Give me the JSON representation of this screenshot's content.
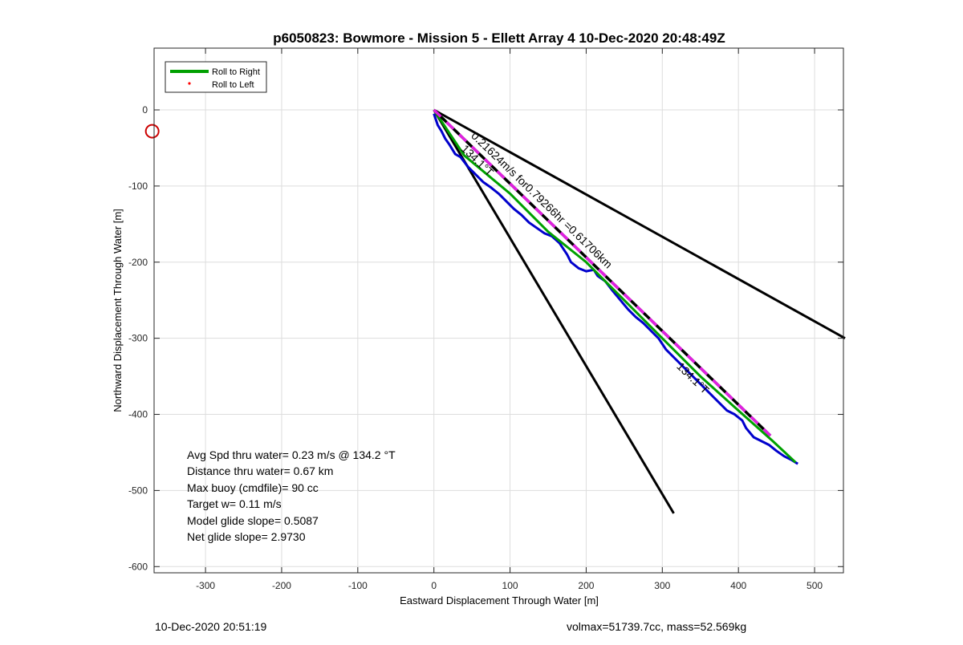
{
  "chart_data": {
    "type": "line",
    "title": "p6050823: Bowmore - Mission 5 - Ellett Array 4 10-Dec-2020 20:48:49Z",
    "xlabel": "Eastward Displacement Through Water [m]",
    "ylabel": "Northward Displacement Through Water [m]",
    "xlim": [
      -375,
      540
    ],
    "ylim": [
      -610,
      80
    ],
    "xticks": [
      -300,
      -200,
      -100,
      0,
      100,
      200,
      300,
      400,
      500
    ],
    "yticks": [
      0,
      -100,
      -200,
      -300,
      -400,
      -500,
      -600
    ],
    "grid": true,
    "legend": {
      "placement": "top-left",
      "entries": [
        "Roll to Right",
        "Roll to Left"
      ]
    },
    "series": [
      {
        "name": "Roll to Right",
        "color": "#00a000",
        "x": [
          0,
          40,
          100,
          150,
          200,
          250,
          300,
          350,
          400,
          445,
          475
        ],
        "y": [
          0,
          -60,
          -110,
          -160,
          -200,
          -250,
          -300,
          -350,
          -395,
          -435,
          -463
        ]
      },
      {
        "name": "Roll to Left",
        "color": "#ff0000",
        "marker": "dot",
        "x": [],
        "y": []
      }
    ],
    "track": {
      "color": "#0000cc",
      "x": [
        0,
        5,
        10,
        15,
        20,
        28,
        35,
        45,
        55,
        65,
        75,
        85,
        95,
        105,
        115,
        125,
        135,
        145,
        155,
        165,
        175,
        180,
        190,
        200,
        210,
        215,
        225,
        235,
        245,
        255,
        265,
        275,
        285,
        295,
        305,
        315,
        325,
        335,
        345,
        355,
        365,
        375,
        385,
        395,
        405,
        410,
        420,
        430,
        440,
        450,
        460,
        470,
        478
      ],
      "y": [
        -5,
        -20,
        -28,
        -38,
        -45,
        -58,
        -62,
        -75,
        -85,
        -95,
        -102,
        -110,
        -120,
        -130,
        -138,
        -148,
        -155,
        -162,
        -166,
        -175,
        -190,
        -200,
        -208,
        -212,
        -210,
        -218,
        -225,
        -238,
        -250,
        -262,
        -272,
        -280,
        -290,
        -300,
        -315,
        -325,
        -335,
        -345,
        -355,
        -365,
        -375,
        -385,
        -395,
        -400,
        -408,
        -418,
        -430,
        -435,
        -440,
        -448,
        -455,
        -460,
        -465
      ]
    },
    "reference_lines": [
      {
        "x": [
          0,
          540
        ],
        "y": [
          0,
          -300
        ],
        "color": "#000000"
      },
      {
        "x": [
          0,
          315
        ],
        "y": [
          0,
          -530
        ],
        "color": "#000000"
      }
    ],
    "dashed_line": {
      "x": [
        0,
        442
      ],
      "y": [
        0,
        -428
      ],
      "colors": [
        "#000000",
        "#e020e0"
      ]
    },
    "circle_marker": {
      "x": -370,
      "y": -28,
      "color": "#cc0000"
    },
    "annotations": [
      {
        "text": "0.21624m/s for0.79266hr =0.61706km",
        "x": 48,
        "y": -35,
        "angle": 44
      },
      {
        "text": "134.1°T",
        "x": 35,
        "y": -52,
        "angle": 44
      },
      {
        "text": "134.1°T",
        "x": 318,
        "y": -338,
        "angle": 44
      }
    ],
    "stats": [
      "Avg Spd thru water=  0.23 m/s @ 134.2 °T",
      "Distance thru water=  0.67 km",
      "Max buoy (cmdfile)= 90 cc",
      "Target w= 0.11 m/s",
      "Model glide slope= 0.5087",
      "Net glide slope= 2.9730"
    ]
  },
  "footer": {
    "timestamp": "10-Dec-2020 20:51:19",
    "volmax_mass": "volmax=51739.7cc, mass=52.569kg"
  }
}
